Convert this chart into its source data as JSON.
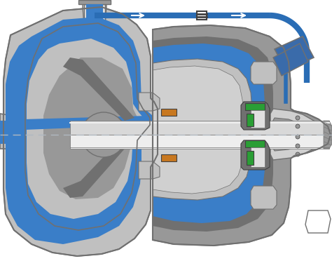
{
  "bg_color": "#ffffff",
  "gray_casing": "#c0c0c0",
  "gray_dark": "#707070",
  "gray_mid": "#989898",
  "gray_light": "#d0d0d0",
  "gray_very_light": "#e0e0e0",
  "blue_fluid": "#3a7ec8",
  "blue_pipe": "#2a6db5",
  "blue_sensor": "#3a6baa",
  "shaft_gray": "#d8d8d8",
  "shaft_light": "#eeeeee",
  "green_seal": "#2a9e35",
  "orange_gasket": "#c87820",
  "dark": "#404040",
  "white": "#ffffff",
  "dashed_color": "#b0b8c0",
  "figsize": [
    4.74,
    3.72
  ],
  "dpi": 100
}
